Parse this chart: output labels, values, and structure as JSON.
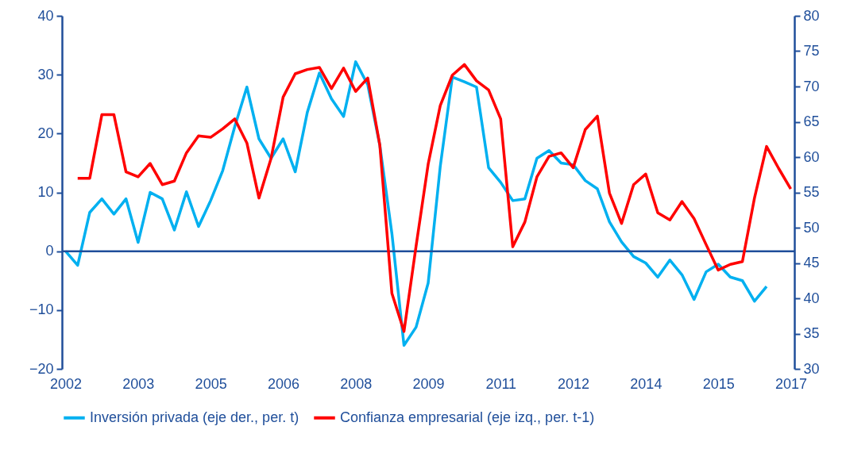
{
  "chart_data": {
    "type": "line",
    "categories": [
      "2002",
      null,
      null,
      null,
      null,
      null,
      "2003",
      null,
      null,
      null,
      null,
      null,
      "2005",
      null,
      null,
      null,
      null,
      null,
      "2006",
      null,
      null,
      null,
      null,
      null,
      "2008",
      null,
      null,
      null,
      null,
      null,
      "2009",
      null,
      null,
      null,
      null,
      null,
      "2011",
      null,
      null,
      null,
      null,
      null,
      "2012",
      null,
      null,
      null,
      null,
      null,
      "2014",
      null,
      null,
      null,
      null,
      null,
      "2015",
      null,
      null,
      null,
      null,
      null,
      "2017"
    ],
    "series": [
      {
        "name": "Inversión privada (eje der., per. t)",
        "color": "#00b0f0",
        "values": [
          0,
          -2.4,
          6.6,
          8.9,
          6.3,
          8.9,
          1.5,
          10,
          8.9,
          3.6,
          10.1,
          4.2,
          8.6,
          13.7,
          21.2,
          27.9,
          19.1,
          15.8,
          19.1,
          13.5,
          23.6,
          30.3,
          25.9,
          22.9,
          32.2,
          28.3,
          18,
          3,
          -16,
          -12.9,
          -5.4,
          14.4,
          29.6,
          28.8,
          27.9,
          14.2,
          11.7,
          8.6,
          8.9,
          15.8,
          17.1,
          15,
          14.7,
          12,
          10.6,
          5,
          1.6,
          -0.9,
          -2,
          -4.4,
          -1.5,
          -4,
          -8.2,
          -3.5,
          -2.2,
          -4.4,
          -5,
          -8.5,
          -6,
          null,
          null
        ]
      },
      {
        "name": "Confianza empresarial (eje izq., per. t-1)",
        "color": "#ff0000",
        "axis": "y2",
        "values": [
          null,
          57,
          57,
          66,
          66,
          57.9,
          57.2,
          59.1,
          56.1,
          56.6,
          60.6,
          63,
          62.8,
          64,
          65.4,
          62,
          54.2,
          59.8,
          68.5,
          71.8,
          72.4,
          72.7,
          69.7,
          72.6,
          69.3,
          71.2,
          61.7,
          40.7,
          35.3,
          47.4,
          59,
          67.3,
          71.6,
          73.1,
          70.8,
          69.5,
          65.4,
          47.3,
          50.8,
          57.2,
          60.1,
          60.6,
          58.5,
          63.9,
          65.8,
          54.9,
          50.6,
          56.1,
          57.6,
          52.1,
          51.1,
          53.7,
          51.3,
          47.6,
          44,
          44.8,
          45.2,
          54.2,
          61.5,
          58.4,
          55.5
        ]
      }
    ],
    "ylim": [
      -20,
      40
    ],
    "yticks": [
      -20,
      -10,
      0,
      10,
      20,
      30,
      40
    ],
    "y2lim": [
      30,
      80
    ],
    "y2ticks": [
      30,
      35,
      40,
      45,
      50,
      55,
      60,
      65,
      70,
      75,
      80
    ],
    "ref_lines": [
      {
        "axis": "y",
        "value": 0,
        "color": "#1f4e9a"
      }
    ],
    "grid": false,
    "legend": "bottom",
    "line_style": "solid"
  }
}
